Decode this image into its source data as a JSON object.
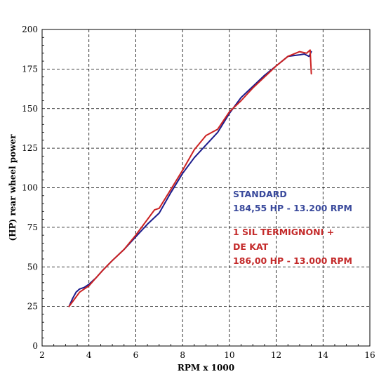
{
  "chart_data": {
    "type": "line",
    "title": "",
    "xlabel": "RPM x 1000",
    "ylabel": "(HP) rear wheel power",
    "xlim": [
      2,
      16
    ],
    "ylim": [
      0,
      200
    ],
    "xticks": [
      "2",
      "4",
      "6",
      "8",
      "10",
      "12",
      "14",
      "16"
    ],
    "yticks": [
      "0",
      "25",
      "50",
      "75",
      "100",
      "125",
      "150",
      "175",
      "200"
    ],
    "grid": true,
    "series": [
      {
        "name": "STANDARD",
        "color": "#1c1c8c",
        "x": [
          3.15,
          3.3,
          3.45,
          3.6,
          3.8,
          4.0,
          4.3,
          4.6,
          5.0,
          5.5,
          6.0,
          6.5,
          7.0,
          7.5,
          8.0,
          8.5,
          9.0,
          9.5,
          10.0,
          10.5,
          11.0,
          11.5,
          12.0,
          12.5,
          13.0,
          13.2,
          13.4,
          13.5
        ],
        "values": [
          25,
          30,
          34,
          36,
          37,
          39,
          43,
          48,
          54,
          61,
          69,
          77,
          84,
          97,
          109,
          119,
          127,
          135,
          147,
          157,
          164,
          171,
          177,
          183,
          184,
          184.5,
          183,
          186
        ]
      },
      {
        "name": "1 SIL TERMIGNONI + DE KAT",
        "color": "#cc2222",
        "x": [
          3.15,
          3.3,
          3.45,
          3.6,
          3.8,
          4.0,
          4.3,
          4.6,
          5.0,
          5.5,
          6.0,
          6.5,
          6.8,
          7.0,
          7.5,
          8.0,
          8.5,
          9.0,
          9.5,
          10.0,
          10.5,
          11.0,
          11.5,
          12.0,
          12.5,
          13.0,
          13.3,
          13.45,
          13.5
        ],
        "values": [
          25,
          28,
          31,
          34,
          36,
          38,
          43,
          48,
          54,
          61,
          70,
          80,
          86,
          87,
          99,
          111,
          124,
          133,
          137,
          148,
          155,
          163,
          170,
          177,
          183,
          186,
          185,
          187,
          172
        ]
      }
    ],
    "annotations": [
      {
        "text": "STANDARD",
        "color": "#3a4a9c"
      },
      {
        "text": "184,55 HP - 13.200 RPM",
        "color": "#3a4a9c"
      },
      {
        "text": "1 SIL TERMIGNONI +",
        "color": "#c42b2b"
      },
      {
        "text": "DE KAT",
        "color": "#c42b2b"
      },
      {
        "text": "186,00 HP - 13.000 RPM",
        "color": "#c42b2b"
      }
    ]
  }
}
